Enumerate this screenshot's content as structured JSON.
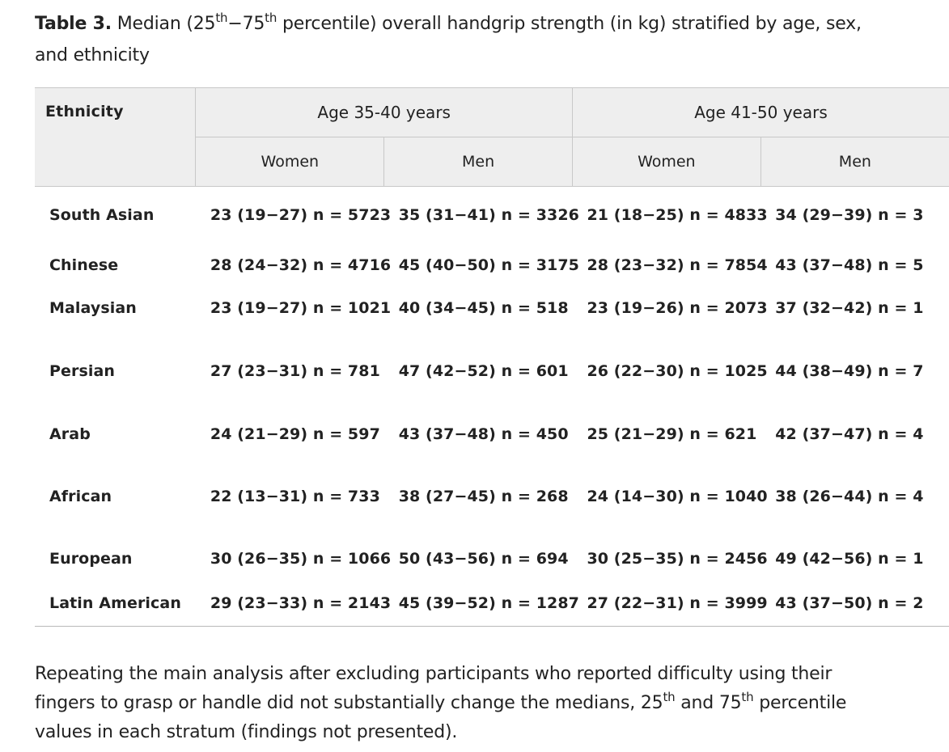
{
  "caption": {
    "label": "Table 3.",
    "text_1": " Median (25",
    "sup_1": "th",
    "dash": "−75",
    "sup_2": "th",
    "text_2": " percentile) overall handgrip strength (in kg) stratified by age, sex, and ethnicity"
  },
  "table": {
    "ethnicity_header": "Ethnicity",
    "age_groups": [
      "Age 35-40 years",
      "Age 41-50 years"
    ],
    "sex_headers": [
      "Women",
      "Men",
      "Women",
      "Men"
    ],
    "rows": [
      {
        "ethnicity": "South Asian",
        "cells": [
          "23 (19−27) n = 5723",
          "35 (31−41) n = 3326",
          "21 (18−25) n = 4833",
          "34 (29−39) n = 3"
        ]
      },
      {
        "ethnicity": "Chinese",
        "cells": [
          "28 (24−32) n = 4716",
          "45 (40−50) n = 3175",
          "28 (23−32) n = 7854",
          "43 (37−48) n = 5"
        ]
      },
      {
        "ethnicity": "Malaysian",
        "cells": [
          "23 (19−27) n = 1021",
          "40 (34−45) n = 518",
          "23 (19−26) n = 2073",
          "37 (32−42) n = 1"
        ]
      },
      {
        "ethnicity": "Persian",
        "cells": [
          "27 (23−31) n = 781",
          "47 (42−52) n = 601",
          "26 (22−30) n = 1025",
          "44 (38−49) n = 7"
        ]
      },
      {
        "ethnicity": "Arab",
        "cells": [
          "24 (21−29) n = 597",
          "43 (37−48) n = 450",
          "25 (21−29) n = 621",
          "42 (37−47) n = 4"
        ]
      },
      {
        "ethnicity": "African",
        "cells": [
          "22 (13−31) n = 733",
          "38 (27−45) n = 268",
          "24 (14−30) n = 1040",
          "38 (26−44) n = 4"
        ]
      },
      {
        "ethnicity": "European",
        "cells": [
          "30 (26−35) n = 1066",
          "50 (43−56) n = 694",
          "30 (25−35) n = 2456",
          "49 (42−56) n = 1"
        ]
      },
      {
        "ethnicity": "Latin American",
        "cells": [
          "29 (23−33) n = 2143",
          "45 (39−52) n = 1287",
          "27 (22−31) n = 3999",
          "43 (37−50) n = 2"
        ]
      }
    ]
  },
  "paragraph": {
    "text_1": "Repeating the main analysis after excluding participants who reported difficulty using their fingers to grasp or handle did not substantially change the medians, 25",
    "sup_1": "th",
    "text_2": " and 75",
    "sup_2": "th",
    "text_3": " percentile values in each stratum (findings not presented)."
  }
}
